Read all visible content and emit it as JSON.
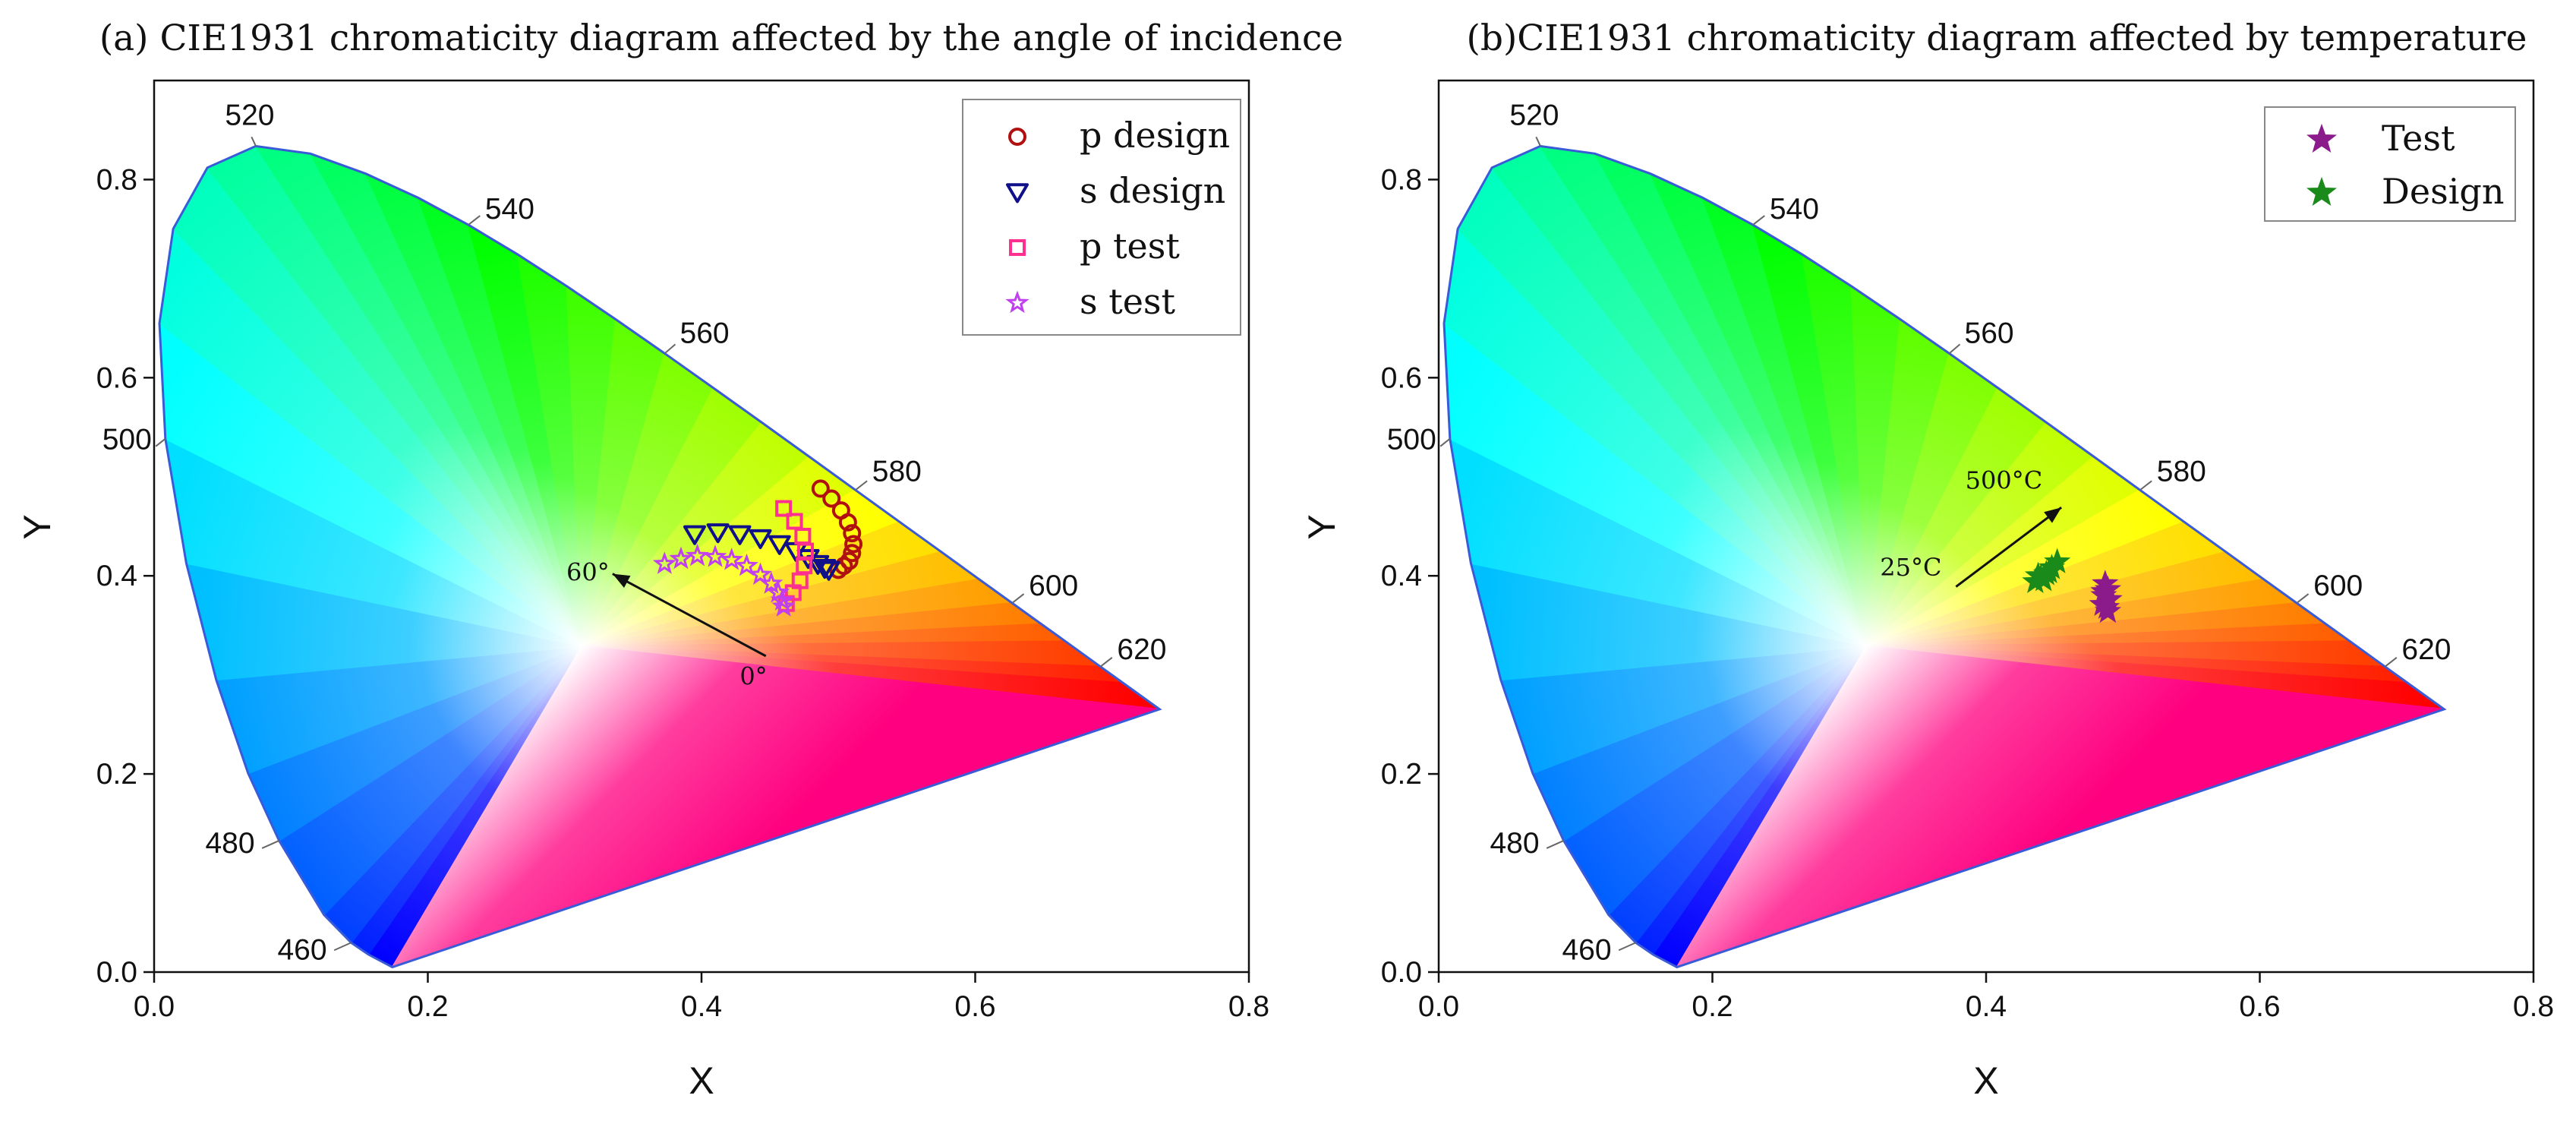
{
  "chart_data": [
    {
      "type": "scatter",
      "title": "(a) CIE1931 chromaticity diagram affected by the angle of incidence",
      "xlabel": "X",
      "ylabel": "Y",
      "xlim": [
        0,
        0.8
      ],
      "ylim": [
        0,
        0.9
      ],
      "x_ticks": [
        "0.0",
        "0.2",
        "0.4",
        "0.6",
        "0.8"
      ],
      "y_ticks": [
        "0.0",
        "0.2",
        "0.4",
        "0.6",
        "0.8"
      ],
      "wavelength_labels": [
        {
          "text": "460",
          "x": 0.144,
          "y": 0.03
        },
        {
          "text": "480",
          "x": 0.091,
          "y": 0.133
        },
        {
          "text": "500",
          "x": 0.008,
          "y": 0.538
        },
        {
          "text": "520",
          "x": 0.074,
          "y": 0.834
        },
        {
          "text": "540",
          "x": 0.23,
          "y": 0.754
        },
        {
          "text": "560",
          "x": 0.373,
          "y": 0.624
        },
        {
          "text": "580",
          "x": 0.512,
          "y": 0.487
        },
        {
          "text": "600",
          "x": 0.627,
          "y": 0.372
        },
        {
          "text": "620",
          "x": 0.691,
          "y": 0.308
        }
      ],
      "legend_position": "top-right",
      "series": [
        {
          "name": "p design",
          "marker": "circle",
          "color": "#b01010",
          "x": [
            0.487,
            0.495,
            0.502,
            0.507,
            0.51,
            0.511,
            0.51,
            0.508,
            0.504,
            0.5
          ],
          "y": [
            0.488,
            0.478,
            0.466,
            0.454,
            0.443,
            0.432,
            0.423,
            0.415,
            0.41,
            0.406
          ]
        },
        {
          "name": "s design",
          "marker": "triangle-down",
          "color": "#10108a",
          "x": [
            0.395,
            0.412,
            0.428,
            0.443,
            0.457,
            0.469,
            0.478,
            0.485,
            0.49,
            0.493
          ],
          "y": [
            0.442,
            0.444,
            0.442,
            0.438,
            0.432,
            0.425,
            0.418,
            0.412,
            0.408,
            0.406
          ]
        },
        {
          "name": "p test",
          "marker": "square",
          "color": "#ff3090",
          "x": [
            0.46,
            0.468,
            0.474,
            0.476,
            0.475,
            0.472,
            0.467,
            0.462
          ],
          "y": [
            0.468,
            0.455,
            0.44,
            0.425,
            0.41,
            0.395,
            0.383,
            0.372
          ]
        },
        {
          "name": "s test",
          "marker": "star-outline",
          "color": "#c040f0",
          "x": [
            0.373,
            0.385,
            0.397,
            0.41,
            0.422,
            0.433,
            0.443,
            0.451,
            0.456,
            0.459,
            0.46
          ],
          "y": [
            0.412,
            0.417,
            0.42,
            0.419,
            0.416,
            0.41,
            0.401,
            0.392,
            0.383,
            0.375,
            0.369
          ]
        }
      ],
      "annotations": [
        {
          "text": "60°",
          "x": 0.317,
          "y": 0.395
        },
        {
          "text": "0°",
          "x": 0.438,
          "y": 0.29
        }
      ],
      "arrow": {
        "from": [
          0.447,
          0.319
        ],
        "to": [
          0.335,
          0.402
        ]
      }
    },
    {
      "type": "scatter",
      "title": "(b)CIE1931 chromaticity diagram affected by temperature",
      "xlabel": "X",
      "ylabel": "Y",
      "xlim": [
        0,
        0.8
      ],
      "ylim": [
        0,
        0.9
      ],
      "x_ticks": [
        "0.0",
        "0.2",
        "0.4",
        "0.6",
        "0.8"
      ],
      "y_ticks": [
        "0.0",
        "0.2",
        "0.4",
        "0.6",
        "0.8"
      ],
      "wavelength_labels": [
        {
          "text": "460",
          "x": 0.144,
          "y": 0.03
        },
        {
          "text": "480",
          "x": 0.091,
          "y": 0.133
        },
        {
          "text": "500",
          "x": 0.008,
          "y": 0.538
        },
        {
          "text": "520",
          "x": 0.074,
          "y": 0.834
        },
        {
          "text": "540",
          "x": 0.23,
          "y": 0.754
        },
        {
          "text": "560",
          "x": 0.373,
          "y": 0.624
        },
        {
          "text": "580",
          "x": 0.512,
          "y": 0.487
        },
        {
          "text": "600",
          "x": 0.627,
          "y": 0.372
        },
        {
          "text": "620",
          "x": 0.691,
          "y": 0.308
        }
      ],
      "legend_position": "top-right",
      "series": [
        {
          "name": "Test",
          "marker": "star",
          "color": "#8b1a8b",
          "x": [
            0.487,
            0.489,
            0.486,
            0.49,
            0.485,
            0.488,
            0.489,
            0.486
          ],
          "y": [
            0.392,
            0.386,
            0.38,
            0.376,
            0.371,
            0.368,
            0.364,
            0.384
          ]
        },
        {
          "name": "Design",
          "marker": "star",
          "color": "#1a8a1a",
          "x": [
            0.436,
            0.44,
            0.444,
            0.448,
            0.452,
            0.438,
            0.446,
            0.442
          ],
          "y": [
            0.394,
            0.398,
            0.402,
            0.408,
            0.414,
            0.4,
            0.404,
            0.396
          ]
        }
      ],
      "annotations": [
        {
          "text": "500°C",
          "x": 0.413,
          "y": 0.488
        },
        {
          "text": "25°C",
          "x": 0.345,
          "y": 0.4
        }
      ],
      "arrow": {
        "from": [
          0.378,
          0.389
        ],
        "to": [
          0.455,
          0.469
        ]
      }
    }
  ],
  "colors": {
    "outline": "#3a5bd8",
    "axis": "#111111"
  }
}
